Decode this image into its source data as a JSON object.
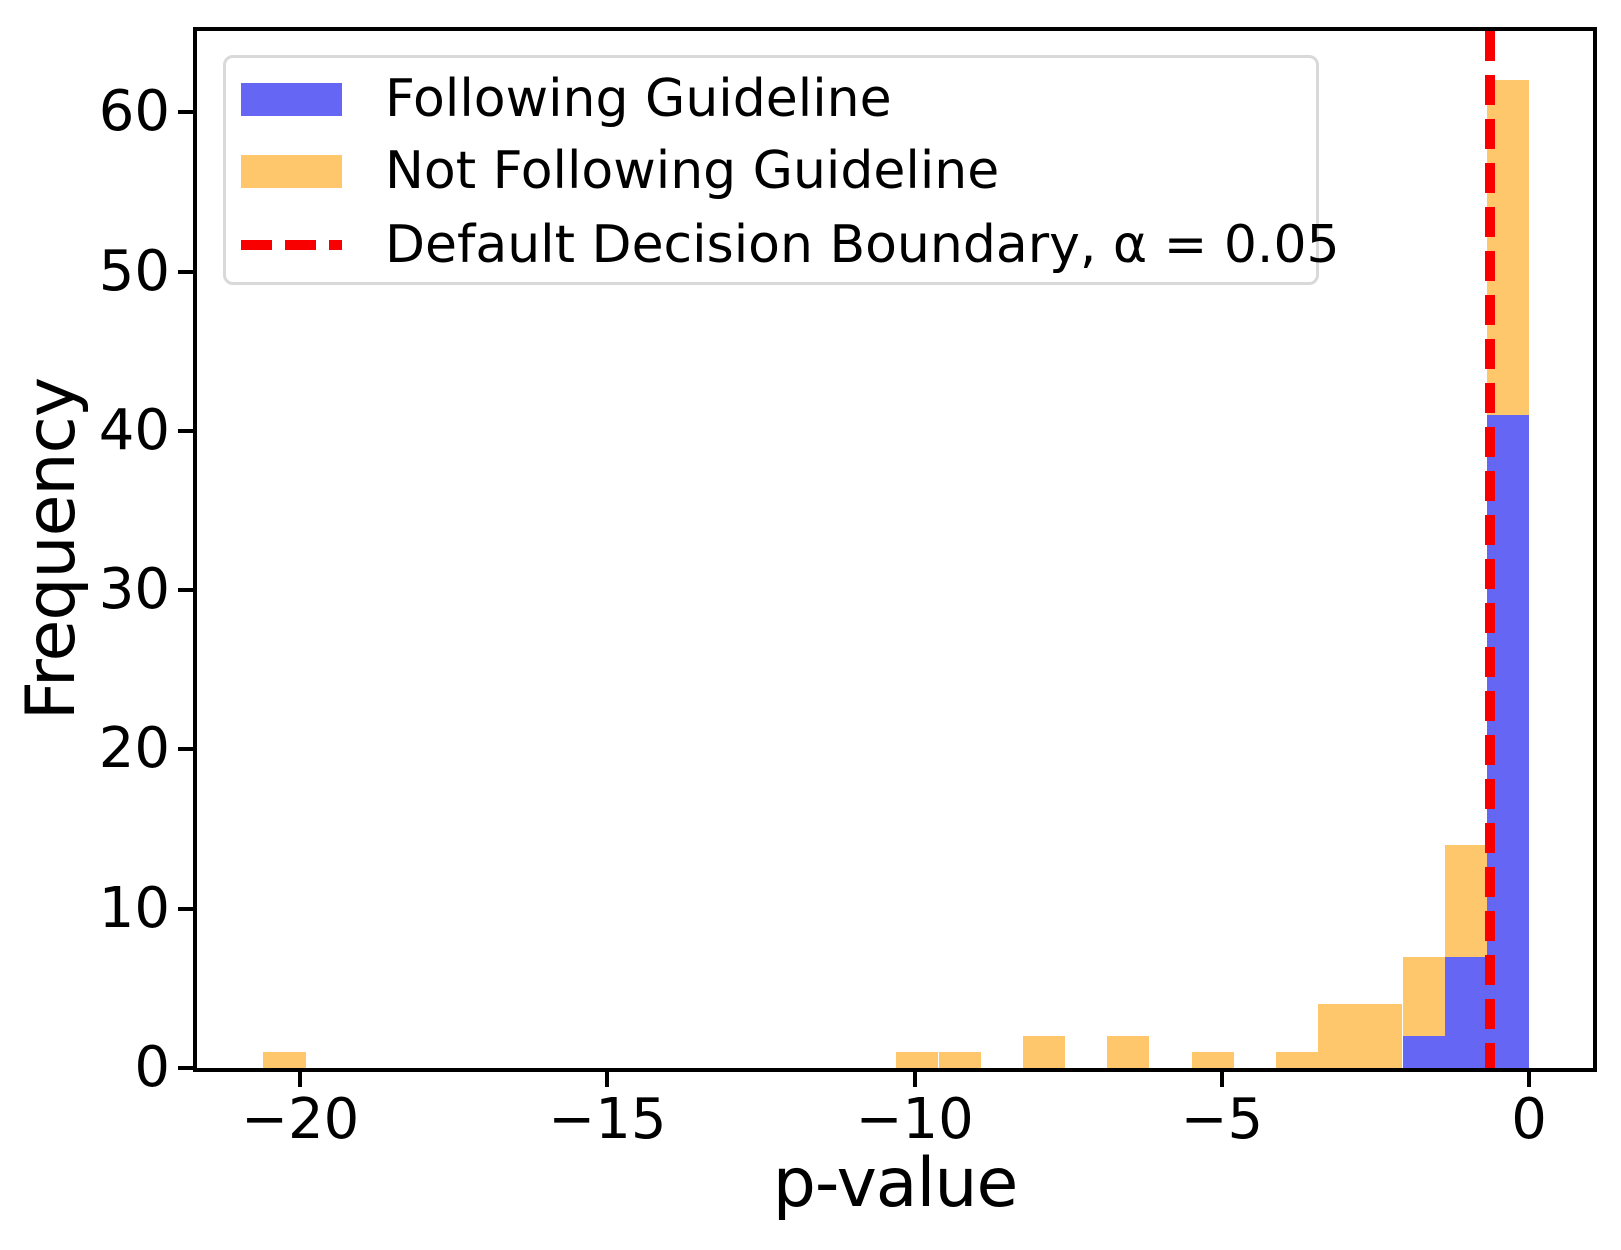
{
  "figure": {
    "background_color": "#ffffff",
    "xlabel": "p-value",
    "ylabel": "Frequency"
  },
  "legend": {
    "position": "upper left",
    "border_color": "#d9d9d9",
    "entries": [
      {
        "label": "Following Guideline",
        "swatch": "patch",
        "color": "#6666f5"
      },
      {
        "label": "Not Following Guideline",
        "swatch": "patch",
        "color": "#ffc76c"
      },
      {
        "label": "Default Decision Boundary, α = 0.05",
        "swatch": "dashed-line",
        "color": "#f80000"
      }
    ]
  },
  "chart_data": {
    "type": "bar",
    "subtype": "overlaid-histogram",
    "title": "",
    "xlabel": "p-value",
    "ylabel": "Frequency",
    "xlim": [
      -21.68,
      1.04
    ],
    "ylim": [
      0,
      65.1
    ],
    "grid": false,
    "legend_position": "upper left",
    "bin_width": 0.687,
    "xticks": [
      {
        "value": -20,
        "label": "−20"
      },
      {
        "value": -15,
        "label": "−15"
      },
      {
        "value": -10,
        "label": "−10"
      },
      {
        "value": -5,
        "label": "−5"
      },
      {
        "value": 0,
        "label": "0"
      }
    ],
    "yticks": [
      {
        "value": 0,
        "label": "0"
      },
      {
        "value": 10,
        "label": "10"
      },
      {
        "value": 20,
        "label": "20"
      },
      {
        "value": 30,
        "label": "30"
      },
      {
        "value": 40,
        "label": "40"
      },
      {
        "value": 50,
        "label": "50"
      },
      {
        "value": 60,
        "label": "60"
      }
    ],
    "series": [
      {
        "name": "Not Following Guideline",
        "color": "#ffc76c",
        "bars": [
          {
            "bin_left": -20.6,
            "count": 1
          },
          {
            "bin_left": -10.3,
            "count": 1
          },
          {
            "bin_left": -9.61,
            "count": 1
          },
          {
            "bin_left": -8.24,
            "count": 2
          },
          {
            "bin_left": -6.87,
            "count": 2
          },
          {
            "bin_left": -5.49,
            "count": 1
          },
          {
            "bin_left": -4.12,
            "count": 1
          },
          {
            "bin_left": -3.43,
            "count": 4
          },
          {
            "bin_left": -2.75,
            "count": 4
          },
          {
            "bin_left": -2.06,
            "count": 7
          },
          {
            "bin_left": -1.37,
            "count": 14
          },
          {
            "bin_left": -0.69,
            "count": 62
          }
        ]
      },
      {
        "name": "Following Guideline",
        "color": "#6666f5",
        "bars": [
          {
            "bin_left": -2.06,
            "count": 2
          },
          {
            "bin_left": -1.37,
            "count": 7
          },
          {
            "bin_left": -0.69,
            "count": 41
          }
        ]
      }
    ],
    "boundary_line": {
      "label": "Default Decision Boundary, α = 0.05",
      "x": -0.64,
      "color": "#f80000",
      "style": "dashed"
    }
  }
}
